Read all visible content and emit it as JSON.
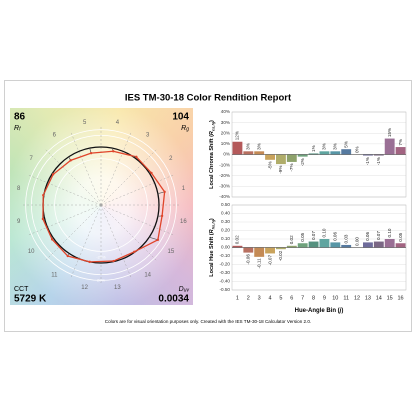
{
  "title": "IES TM-30-18 Color Rendition Report",
  "footnote": "Colors are for visual orientation purposes only. Created with the IES TM-30-18 Calculator Version 2.0.",
  "metrics": {
    "rf": {
      "value": "86",
      "symbol": "R",
      "sub": "f"
    },
    "rg": {
      "value": "104",
      "symbol": "R",
      "sub": "g"
    },
    "cct": {
      "label": "CCT",
      "value": "5729 K"
    },
    "duv": {
      "symbol": "D",
      "sub": "uv",
      "value": "0.0034"
    }
  },
  "vector_graphic": {
    "bin_labels": [
      "1",
      "2",
      "3",
      "4",
      "5",
      "6",
      "7",
      "8",
      "9",
      "10",
      "11",
      "12",
      "13",
      "14",
      "15",
      "16"
    ],
    "ring_labels": [
      "-20%",
      "20%"
    ]
  },
  "chart_data": [
    {
      "type": "bar",
      "ylabel": {
        "text": "Local Chroma Shift (",
        "symbol": "R",
        "sub": "cs,hj",
        "end": ")"
      },
      "values": [
        12,
        3,
        3,
        -5,
        -9,
        -7,
        -2,
        1,
        3,
        3,
        5,
        0,
        -1,
        -1,
        15,
        7
      ],
      "value_labels": [
        "12%",
        "3%",
        "3%",
        "-5%",
        "-9%",
        "-7%",
        "-2%",
        "1%",
        "3%",
        "3%",
        "5%",
        "0%",
        "-1%",
        "-1%",
        "15%",
        "7%"
      ],
      "colors": [
        "#b4595a",
        "#b87060",
        "#c48a55",
        "#c9a35c",
        "#b0ad6a",
        "#8ea26b",
        "#6fa27c",
        "#55917f",
        "#5fa5a0",
        "#5796a6",
        "#567aa0",
        "#6d7298",
        "#6f6c9b",
        "#7b6785",
        "#9a6f95",
        "#a26381"
      ],
      "ylim": [
        -40,
        40
      ],
      "yticks": [
        {
          "value": -40,
          "label": "-40%"
        },
        {
          "value": -30,
          "label": "-30%"
        },
        {
          "value": -20,
          "label": "-20%"
        },
        {
          "value": -10,
          "label": "-10%"
        },
        {
          "value": 0,
          "label": "0%"
        },
        {
          "value": 10,
          "label": "10%"
        },
        {
          "value": 20,
          "label": "20%"
        },
        {
          "value": 30,
          "label": "30%"
        },
        {
          "value": 40,
          "label": "40%"
        }
      ],
      "grid": true
    },
    {
      "type": "bar",
      "ylabel": {
        "text": "Local Hue Shift (",
        "symbol": "R",
        "sub": "hs,hj",
        "end": ")"
      },
      "xlabel": {
        "text": "Hue-Angle Bin (",
        "symbol": "j",
        "end": ")"
      },
      "categories": [
        "1",
        "2",
        "3",
        "4",
        "5",
        "6",
        "7",
        "8",
        "9",
        "10",
        "11",
        "12",
        "13",
        "14",
        "15",
        "16"
      ],
      "values": [
        0.02,
        -0.06,
        -0.11,
        -0.07,
        -0.02,
        0.02,
        0.05,
        0.07,
        0.1,
        0.06,
        0.03,
        0.0,
        0.06,
        0.07,
        0.1,
        0.05
      ],
      "value_labels": [
        "0.02",
        "-0.06",
        "-0.11",
        "-0.07",
        "-0.02",
        "0.02",
        "0.05",
        "0.07",
        "0.10",
        "0.06",
        "0.03",
        "0.00",
        "0.06",
        "0.07",
        "0.10",
        "0.05"
      ],
      "colors": [
        "#b4595a",
        "#b87060",
        "#c48a55",
        "#c9a35c",
        "#b0ad6a",
        "#8ea26b",
        "#6fa27c",
        "#55917f",
        "#5fa5a0",
        "#5796a6",
        "#567aa0",
        "#6d7298",
        "#6f6c9b",
        "#7b6785",
        "#9a6f95",
        "#a26381"
      ],
      "ylim": [
        -0.5,
        0.5
      ],
      "yticks": [
        {
          "value": -0.5,
          "label": "-0.50"
        },
        {
          "value": -0.4,
          "label": "-0.40"
        },
        {
          "value": -0.3,
          "label": "-0.30"
        },
        {
          "value": -0.2,
          "label": "-0.20"
        },
        {
          "value": -0.1,
          "label": "-0.10"
        },
        {
          "value": 0,
          "label": "0.00"
        },
        {
          "value": 0.1,
          "label": "0.10"
        },
        {
          "value": 0.2,
          "label": "0.20"
        },
        {
          "value": 0.3,
          "label": "0.30"
        },
        {
          "value": 0.4,
          "label": "0.40"
        },
        {
          "value": 0.5,
          "label": "0.50"
        }
      ],
      "grid": true
    }
  ]
}
